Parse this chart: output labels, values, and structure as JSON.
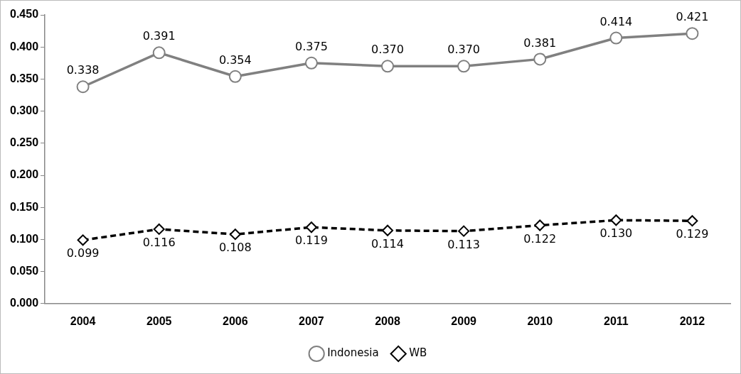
{
  "chart_data": {
    "type": "line",
    "categories": [
      "2004",
      "2005",
      "2006",
      "2007",
      "2008",
      "2009",
      "2010",
      "2011",
      "2012"
    ],
    "series": [
      {
        "name": "Indonesia",
        "color": "#808080",
        "marker": "circle",
        "line_style": "solid",
        "values": [
          0.338,
          0.391,
          0.354,
          0.375,
          0.37,
          0.37,
          0.381,
          0.414,
          0.421
        ],
        "value_labels": [
          "0.338",
          "0.391",
          "0.354",
          "0.375",
          "0.370",
          "0.370",
          "0.381",
          "0.414",
          "0.421"
        ]
      },
      {
        "name": "WB",
        "color": "#000000",
        "marker": "diamond",
        "line_style": "dashed",
        "values": [
          0.099,
          0.116,
          0.108,
          0.119,
          0.114,
          0.113,
          0.122,
          0.13,
          0.129
        ],
        "value_labels": [
          "0.099",
          "0.116",
          "0.108",
          "0.119",
          "0.114",
          "0.113",
          "0.122",
          "0.130",
          "0.129"
        ]
      }
    ],
    "ylim": [
      0,
      0.45
    ],
    "yticks": [
      {
        "value": 0,
        "label": "0.000"
      },
      {
        "value": 0.05,
        "label": "0.050"
      },
      {
        "value": 0.1,
        "label": "0.100"
      },
      {
        "value": 0.15,
        "label": "0.150"
      },
      {
        "value": 0.2,
        "label": "0.200"
      },
      {
        "value": 0.25,
        "label": "0.250"
      },
      {
        "value": 0.3,
        "label": "0.300"
      },
      {
        "value": 0.35,
        "label": "0.350"
      },
      {
        "value": 0.4,
        "label": "0.400"
      },
      {
        "value": 0.45,
        "label": "0.450"
      }
    ],
    "grid": false,
    "legend": "bottom"
  }
}
